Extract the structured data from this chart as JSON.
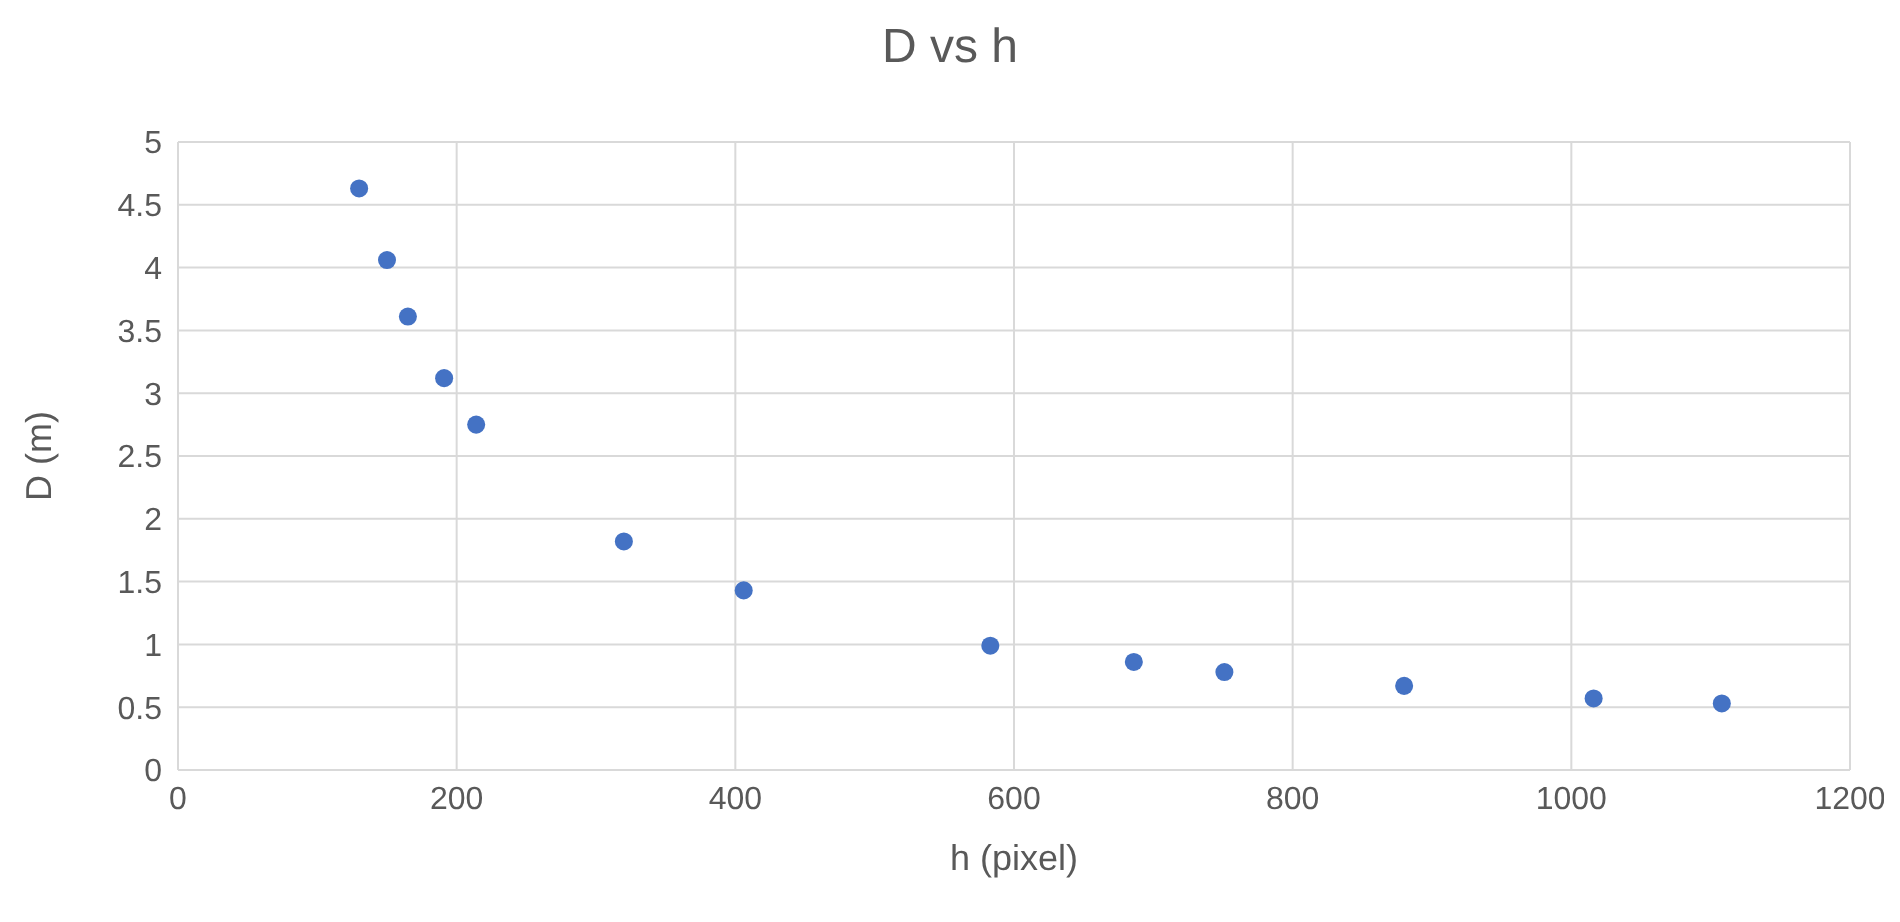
{
  "chart_data": {
    "type": "scatter",
    "title": "D vs h",
    "xlabel": "h (pixel)",
    "ylabel": "D (m)",
    "x": [
      130,
      150,
      165,
      191,
      214,
      320,
      406,
      583,
      686,
      751,
      880,
      1016,
      1108
    ],
    "series": [
      {
        "color": "#4472c4",
        "values": [
          4.63,
          4.06,
          3.61,
          3.12,
          2.75,
          1.82,
          1.43,
          0.99,
          0.86,
          0.78,
          0.67,
          0.57,
          0.53
        ]
      }
    ],
    "xlim": [
      0,
      1200
    ],
    "xticks": [
      0,
      200,
      400,
      600,
      800,
      1000,
      1200
    ],
    "ylim": [
      0,
      5
    ],
    "yticks": [
      0,
      0.5,
      1,
      1.5,
      2,
      2.5,
      3,
      3.5,
      4,
      4.5,
      5
    ],
    "grid": true,
    "marker": "circle",
    "legend": false
  }
}
